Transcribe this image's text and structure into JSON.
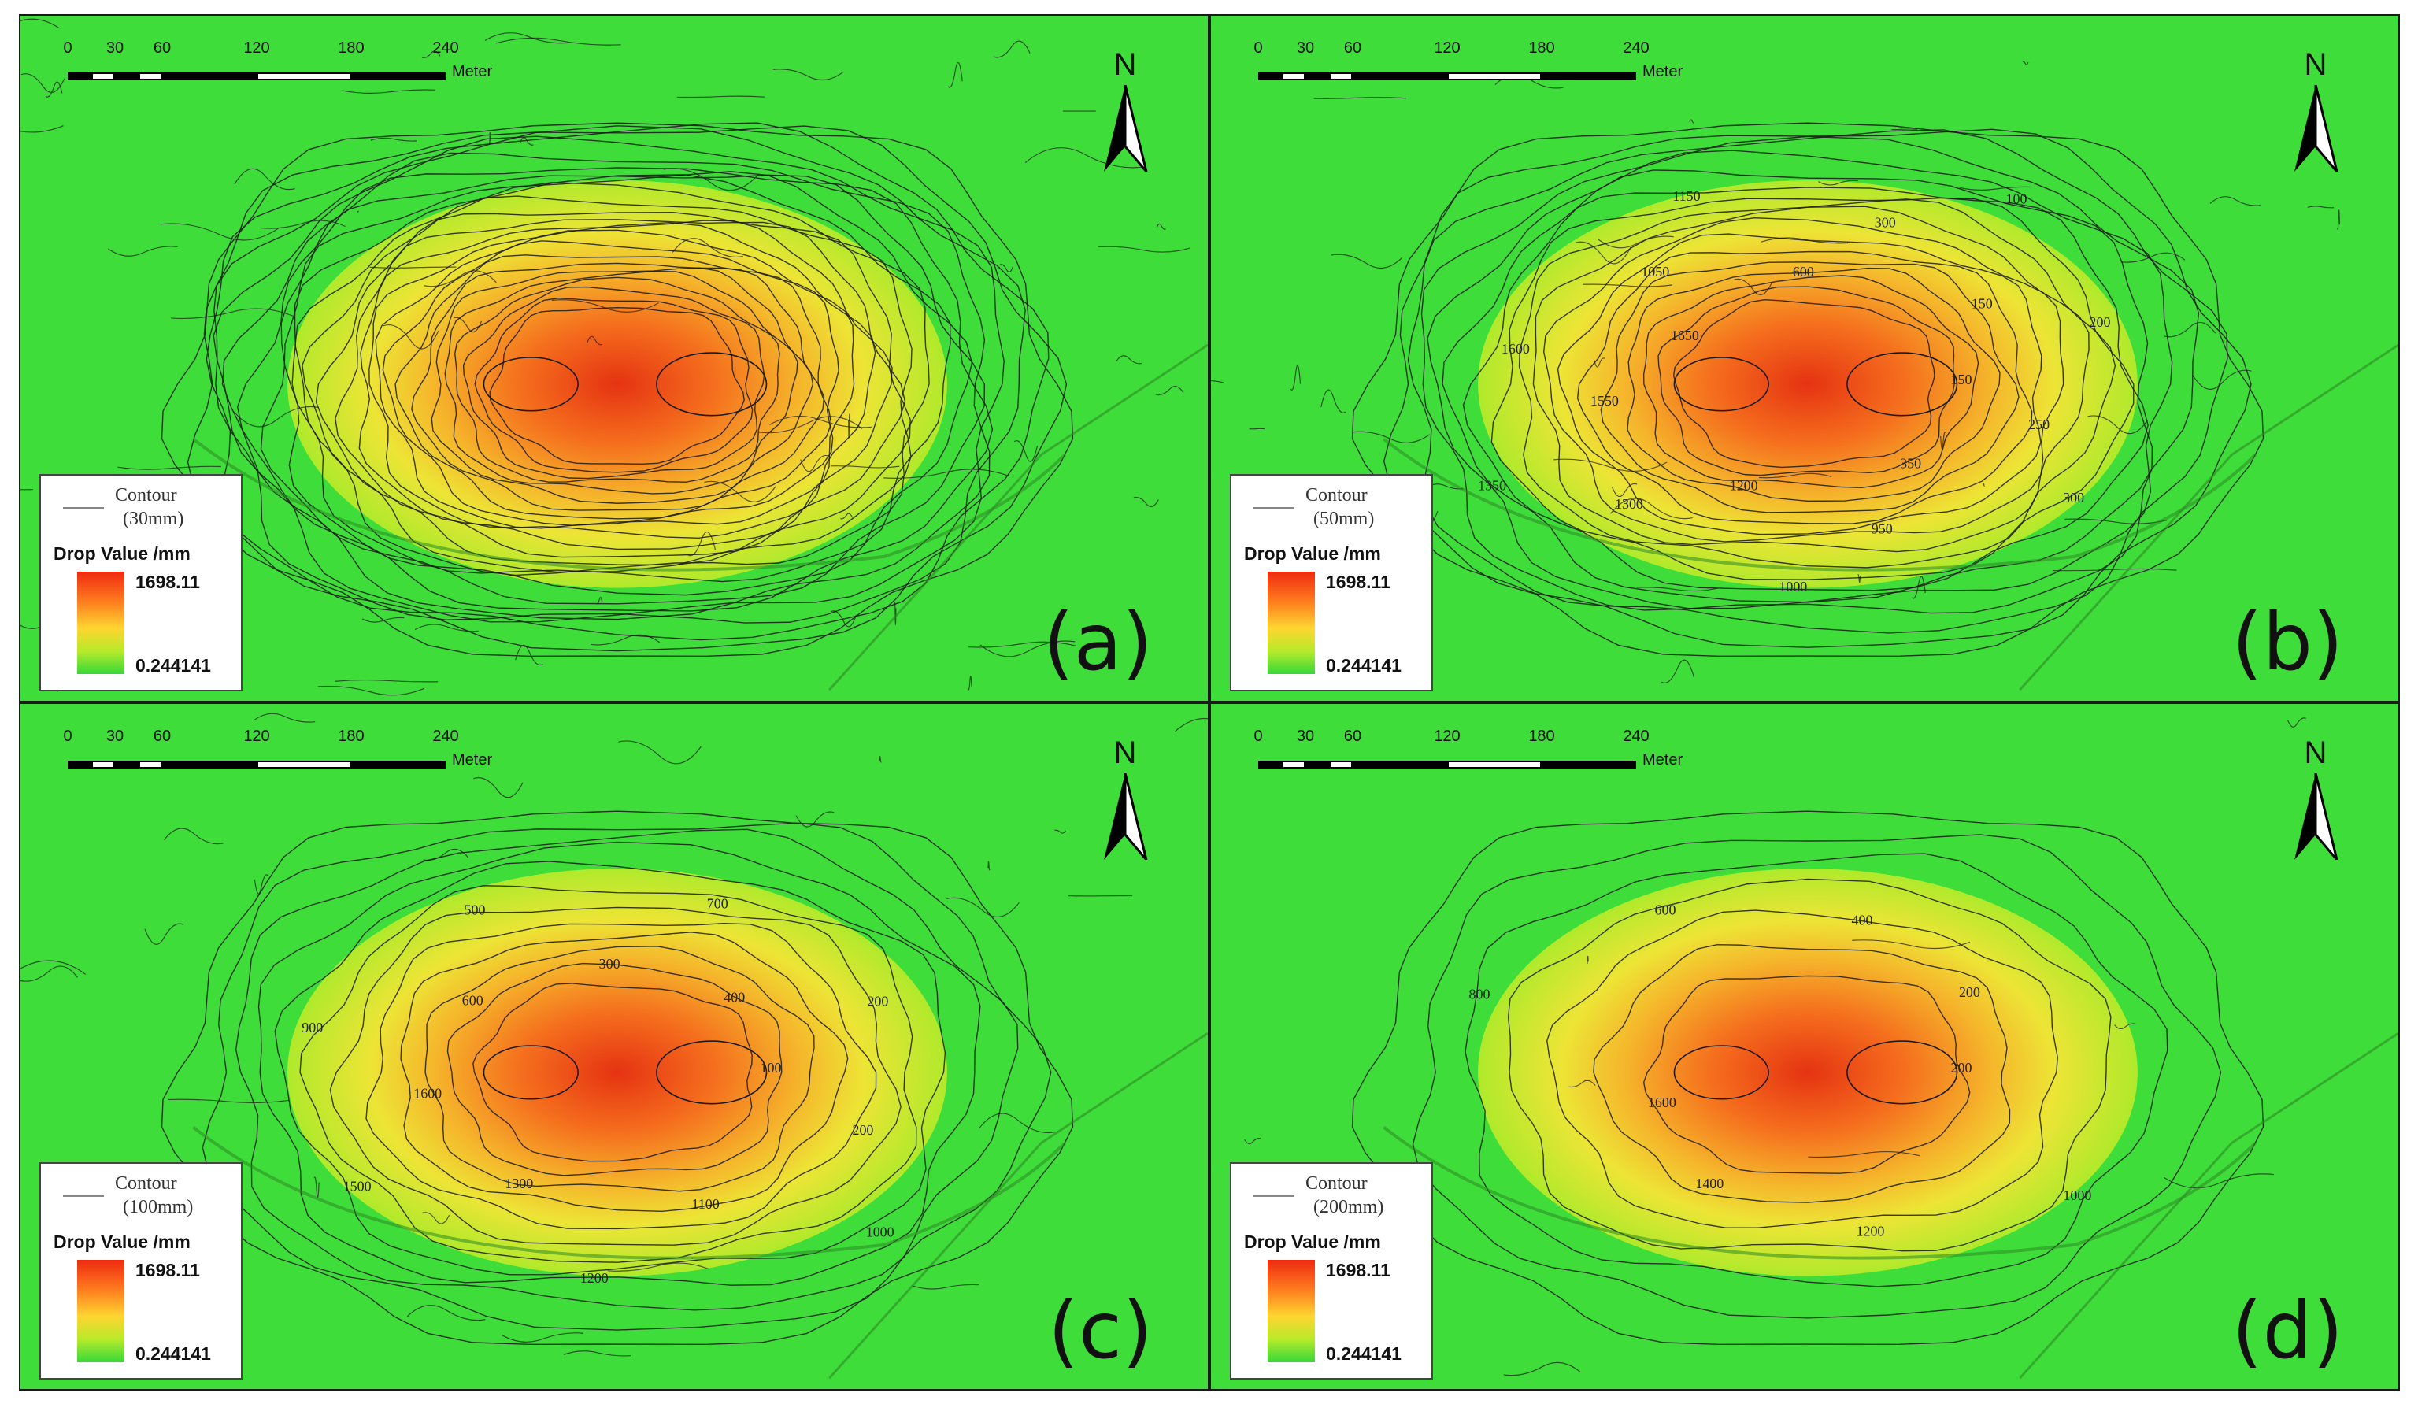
{
  "scale_bar": {
    "ticks": [
      "0",
      "30",
      "60",
      "120",
      "180",
      "240"
    ],
    "unit": "Meter"
  },
  "north_arrow": {
    "label": "N",
    "icon": "north-arrow-icon"
  },
  "legend": {
    "contour_title": "Contour",
    "value_title": "Drop Value /mm",
    "max": "1698.11",
    "min": "0.244141",
    "ramp_colors": [
      "#ee2a10",
      "#ff7f1f",
      "#ffd530",
      "#b6ea2a",
      "#36d838"
    ]
  },
  "colors": {
    "background_green": "#3fdd3a",
    "contour_line": "#1a1a1a"
  },
  "panels": [
    {
      "id": "a",
      "label": "(a)",
      "interval": "(30mm)",
      "contour_labels": []
    },
    {
      "id": "b",
      "label": "(b)",
      "interval": "(50mm)",
      "contour_labels": [
        "150",
        "250",
        "300",
        "350",
        "950",
        "1000",
        "1200",
        "1300",
        "1350",
        "1550",
        "1600",
        "1650",
        "1050",
        "1150",
        "600",
        "300",
        "100",
        "150",
        "200"
      ]
    },
    {
      "id": "c",
      "label": "(c)",
      "interval": "(100mm)",
      "contour_labels": [
        "100",
        "200",
        "1000",
        "1100",
        "1200",
        "1300",
        "1500",
        "1600",
        "900",
        "600",
        "500",
        "300",
        "700",
        "400",
        "200"
      ]
    },
    {
      "id": "d",
      "label": "(d)",
      "interval": "(200mm)",
      "contour_labels": [
        "200",
        "1000",
        "1200",
        "1400",
        "1600",
        "800",
        "600",
        "400",
        "200"
      ]
    }
  ]
}
